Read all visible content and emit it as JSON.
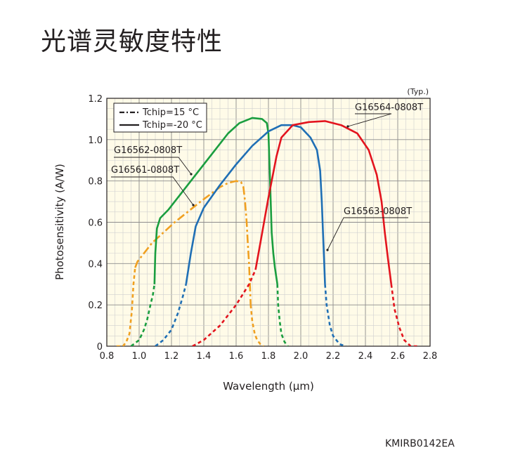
{
  "title": "光谱灵敏度特性",
  "footer_code": "KMIRB0142EA",
  "chart_data": {
    "type": "line",
    "note": "(Typ.)",
    "xlabel": "Wavelength (µm)",
    "ylabel": "Photosensitivity (A/W)",
    "xlim": [
      0.8,
      2.8
    ],
    "ylim": [
      0,
      1.2
    ],
    "x_ticks": [
      "0.8",
      "1.0",
      "1.2",
      "1.4",
      "1.6",
      "1.8",
      "2.0",
      "2.2",
      "2.4",
      "2.6",
      "2.8"
    ],
    "y_ticks": [
      "0",
      "0.2",
      "0.4",
      "0.6",
      "0.8",
      "1.0",
      "1.2"
    ],
    "grid": true,
    "legend": {
      "position": "top-left",
      "items": [
        {
          "label": "Tchip=15 °C",
          "style": "dashdot"
        },
        {
          "label": "Tchip=-20 °C",
          "style": "solid"
        }
      ]
    },
    "series": [
      {
        "name": "G16561-0808T",
        "color": "#f0a020",
        "style": "dashdot",
        "lead": [
          [
            0.86,
            0.0
          ],
          [
            0.9,
            0.0
          ],
          [
            0.92,
            0.02
          ],
          [
            0.94,
            0.06
          ],
          [
            0.955,
            0.17
          ],
          [
            0.965,
            0.3
          ],
          [
            0.975,
            0.38
          ]
        ],
        "main": [
          [
            0.975,
            0.38
          ],
          [
            0.99,
            0.41
          ],
          [
            1.02,
            0.44
          ],
          [
            1.08,
            0.5
          ],
          [
            1.15,
            0.55
          ],
          [
            1.22,
            0.6
          ],
          [
            1.3,
            0.65
          ],
          [
            1.38,
            0.7
          ],
          [
            1.44,
            0.735
          ],
          [
            1.5,
            0.77
          ],
          [
            1.55,
            0.79
          ],
          [
            1.6,
            0.8
          ],
          [
            1.63,
            0.795
          ],
          [
            1.645,
            0.77
          ],
          [
            1.655,
            0.7
          ],
          [
            1.665,
            0.6
          ],
          [
            1.672,
            0.5
          ],
          [
            1.68,
            0.4
          ],
          [
            1.685,
            0.3
          ],
          [
            1.69,
            0.2
          ]
        ],
        "tail": [
          [
            1.69,
            0.2
          ],
          [
            1.7,
            0.12
          ],
          [
            1.715,
            0.06
          ],
          [
            1.73,
            0.03
          ],
          [
            1.75,
            0.01
          ],
          [
            1.77,
            0.0
          ]
        ]
      },
      {
        "name": "G16562-0808T",
        "color": "#1a9e3f",
        "style": "solid",
        "lead": [
          [
            0.95,
            0.0
          ],
          [
            1.0,
            0.03
          ],
          [
            1.03,
            0.08
          ],
          [
            1.05,
            0.13
          ],
          [
            1.07,
            0.2
          ],
          [
            1.085,
            0.25
          ],
          [
            1.095,
            0.3
          ]
        ],
        "main": [
          [
            1.095,
            0.3
          ],
          [
            1.1,
            0.45
          ],
          [
            1.11,
            0.57
          ],
          [
            1.13,
            0.62
          ],
          [
            1.18,
            0.66
          ],
          [
            1.25,
            0.73
          ],
          [
            1.35,
            0.83
          ],
          [
            1.45,
            0.93
          ],
          [
            1.55,
            1.03
          ],
          [
            1.62,
            1.08
          ],
          [
            1.7,
            1.105
          ],
          [
            1.76,
            1.1
          ],
          [
            1.79,
            1.08
          ],
          [
            1.8,
            1.03
          ],
          [
            1.81,
            0.8
          ],
          [
            1.82,
            0.55
          ],
          [
            1.83,
            0.45
          ],
          [
            1.84,
            0.38
          ],
          [
            1.855,
            0.3
          ]
        ],
        "tail": [
          [
            1.855,
            0.3
          ],
          [
            1.86,
            0.2
          ],
          [
            1.87,
            0.12
          ],
          [
            1.88,
            0.06
          ],
          [
            1.9,
            0.02
          ],
          [
            1.92,
            0.0
          ]
        ]
      },
      {
        "name": "G16563-0808T",
        "color": "#1f6fb5",
        "style": "solid",
        "lead": [
          [
            1.1,
            0.0
          ],
          [
            1.15,
            0.03
          ],
          [
            1.2,
            0.08
          ],
          [
            1.24,
            0.16
          ],
          [
            1.27,
            0.24
          ],
          [
            1.29,
            0.3
          ]
        ],
        "main": [
          [
            1.29,
            0.3
          ],
          [
            1.32,
            0.45
          ],
          [
            1.35,
            0.58
          ],
          [
            1.4,
            0.67
          ],
          [
            1.5,
            0.78
          ],
          [
            1.6,
            0.88
          ],
          [
            1.7,
            0.97
          ],
          [
            1.8,
            1.04
          ],
          [
            1.88,
            1.07
          ],
          [
            1.95,
            1.07
          ],
          [
            2.0,
            1.06
          ],
          [
            2.06,
            1.01
          ],
          [
            2.1,
            0.95
          ],
          [
            2.12,
            0.85
          ],
          [
            2.13,
            0.7
          ],
          [
            2.14,
            0.5
          ],
          [
            2.145,
            0.4
          ],
          [
            2.15,
            0.3
          ]
        ],
        "tail": [
          [
            2.15,
            0.3
          ],
          [
            2.16,
            0.2
          ],
          [
            2.18,
            0.1
          ],
          [
            2.2,
            0.05
          ],
          [
            2.24,
            0.01
          ],
          [
            2.28,
            0.0
          ]
        ]
      },
      {
        "name": "G16564-0808T",
        "color": "#e3141e",
        "style": "solid",
        "lead": [
          [
            1.33,
            0.0
          ],
          [
            1.4,
            0.03
          ],
          [
            1.5,
            0.1
          ],
          [
            1.6,
            0.2
          ],
          [
            1.68,
            0.3
          ],
          [
            1.72,
            0.37
          ]
        ],
        "main": [
          [
            1.72,
            0.37
          ],
          [
            1.75,
            0.5
          ],
          [
            1.8,
            0.72
          ],
          [
            1.85,
            0.92
          ],
          [
            1.88,
            1.01
          ],
          [
            1.95,
            1.07
          ],
          [
            2.05,
            1.085
          ],
          [
            2.15,
            1.09
          ],
          [
            2.25,
            1.07
          ],
          [
            2.35,
            1.03
          ],
          [
            2.42,
            0.95
          ],
          [
            2.47,
            0.83
          ],
          [
            2.5,
            0.7
          ],
          [
            2.52,
            0.55
          ],
          [
            2.54,
            0.42
          ],
          [
            2.56,
            0.3
          ]
        ],
        "tail": [
          [
            2.56,
            0.3
          ],
          [
            2.58,
            0.18
          ],
          [
            2.61,
            0.09
          ],
          [
            2.64,
            0.03
          ],
          [
            2.68,
            0.0
          ],
          [
            2.72,
            0.0
          ]
        ]
      }
    ],
    "callouts": [
      {
        "series": "G16564-0808T",
        "label": "G16564-0808T"
      },
      {
        "series": "G16562-0808T",
        "label": "G16562-0808T"
      },
      {
        "series": "G16561-0808T",
        "label": "G16561-0808T"
      },
      {
        "series": "G16563-0808T",
        "label": "G16563-0808T"
      }
    ]
  }
}
